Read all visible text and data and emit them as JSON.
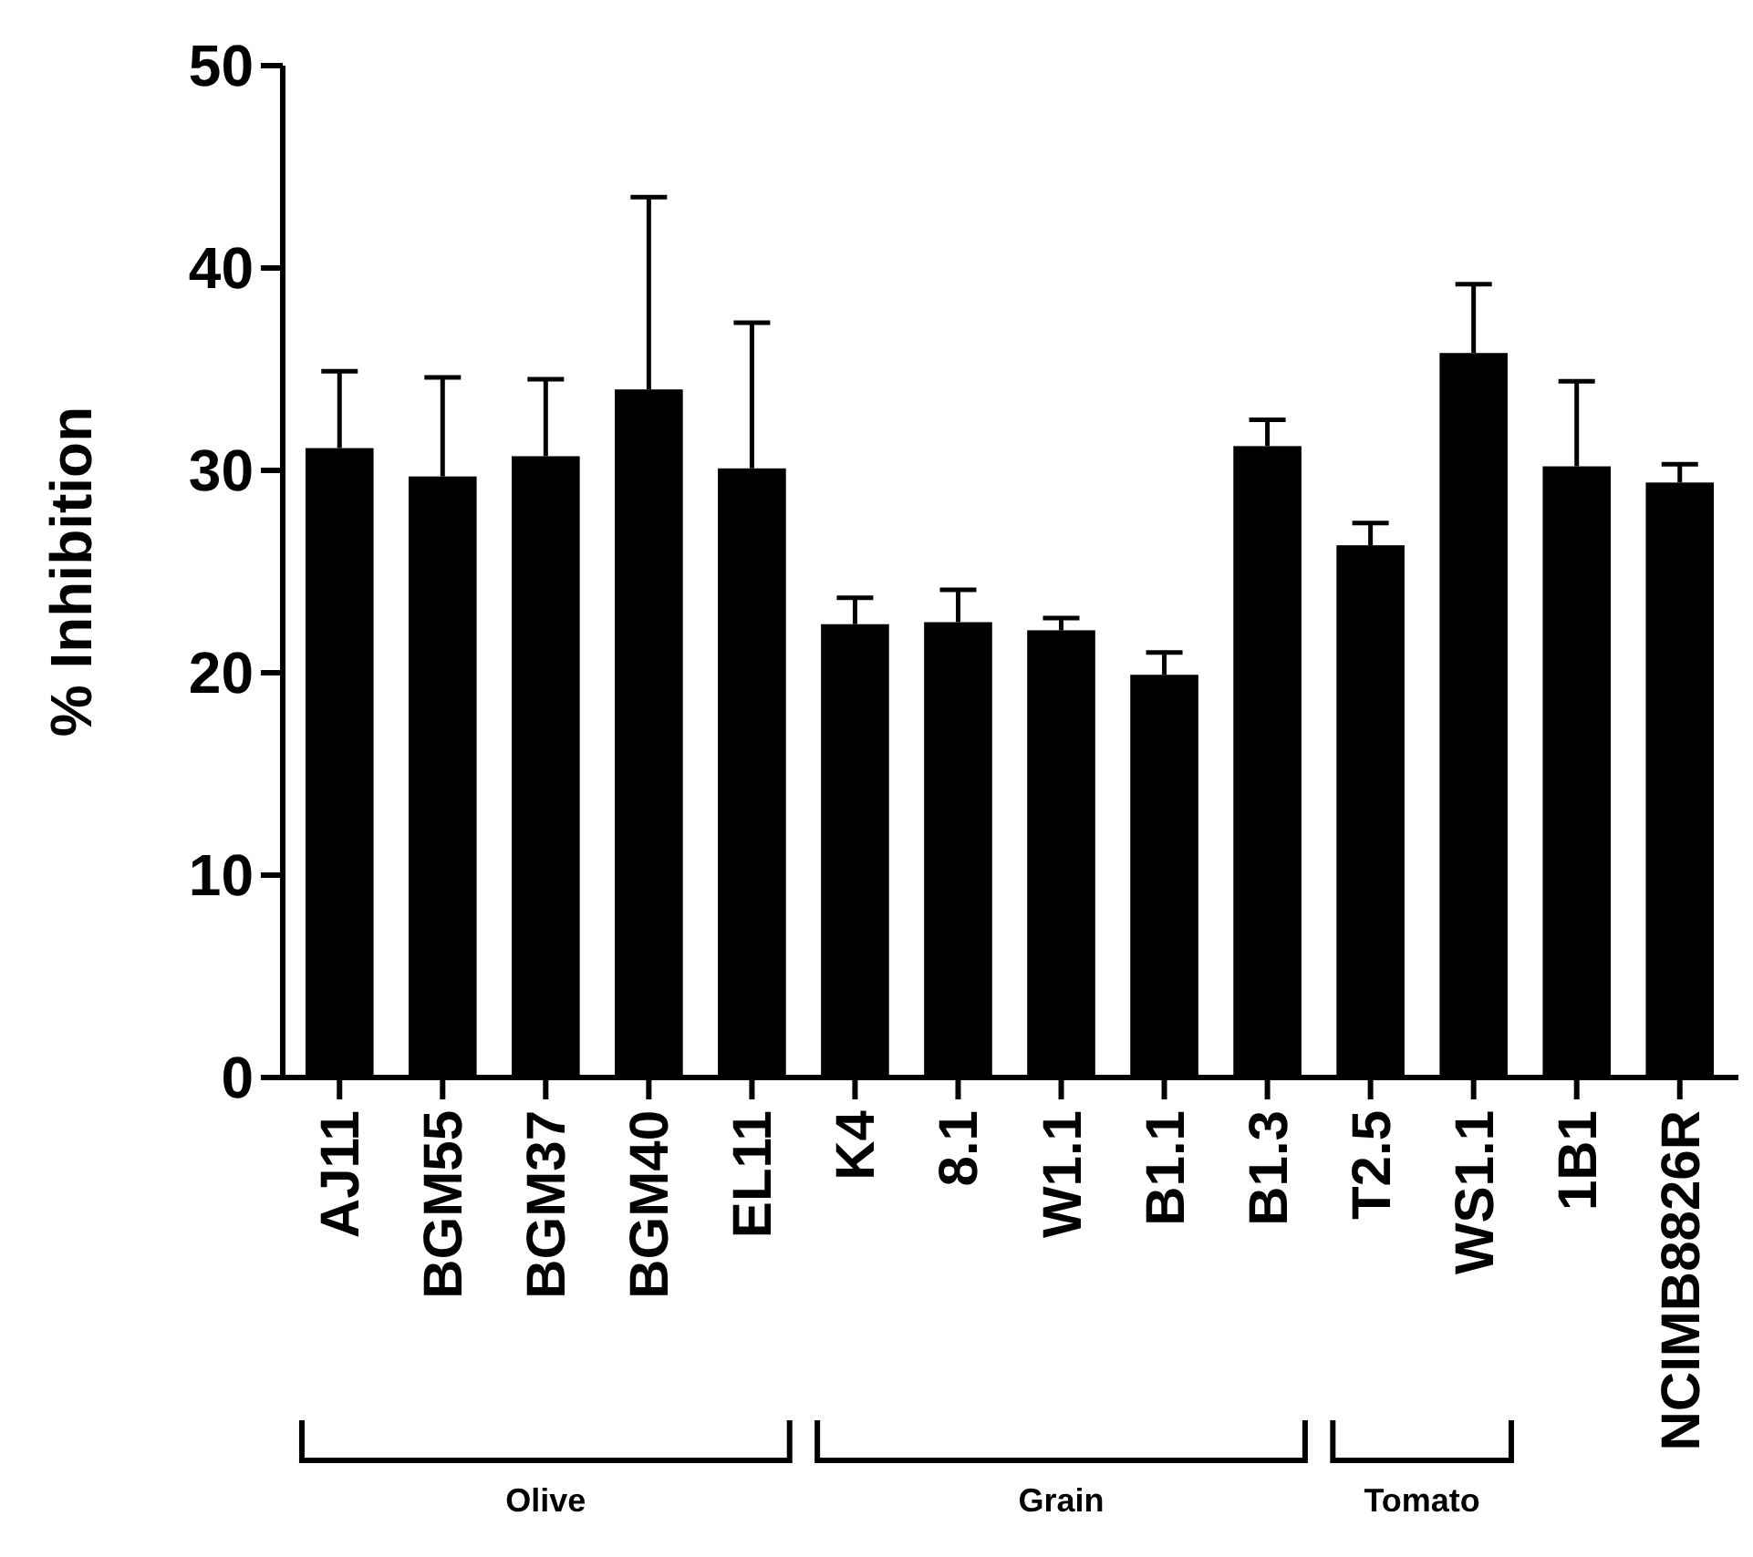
{
  "chart_data": {
    "type": "bar",
    "ylabel": "% Inhibition",
    "categories": [
      "AJ11",
      "BGM55",
      "BGM37",
      "BGM40",
      "EL11",
      "K4",
      "8.1",
      "W1.1",
      "B1.1",
      "B1.3",
      "T2.5",
      "WS1.1",
      "1B1",
      "NCIMB8826R"
    ],
    "values": [
      31.1,
      29.7,
      30.7,
      34.0,
      30.1,
      22.4,
      22.5,
      22.1,
      19.9,
      31.2,
      26.3,
      35.8,
      30.2,
      29.4
    ],
    "errors": [
      [
        31.1,
        34.9
      ],
      [
        29.7,
        34.6
      ],
      [
        30.7,
        34.5
      ],
      [
        34.0,
        43.5
      ],
      [
        30.1,
        37.3
      ],
      [
        22.4,
        23.7
      ],
      [
        22.5,
        24.1
      ],
      [
        22.1,
        22.7
      ],
      [
        19.9,
        21.0
      ],
      [
        31.2,
        32.5
      ],
      [
        26.3,
        27.4
      ],
      [
        35.8,
        39.2
      ],
      [
        30.2,
        34.4
      ],
      [
        29.4,
        30.3
      ]
    ],
    "color": "#000000",
    "ylim": [
      0,
      50
    ],
    "yticks": [
      0,
      10,
      20,
      30,
      40,
      50
    ],
    "grid": false,
    "annotations": [
      "Olive",
      "Grain",
      "Tomato"
    ]
  }
}
